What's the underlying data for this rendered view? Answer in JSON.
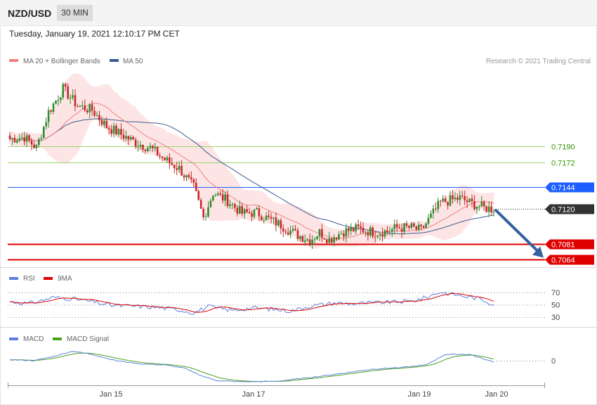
{
  "header": {
    "symbol": "NZD/USD",
    "timeframe": "30 MIN"
  },
  "datetime": "Tuesday, January 19, 2021 12:10:17 PM CET",
  "credit": "Research © 2021 Trading Central",
  "colors": {
    "ma20": "#f08080",
    "ma50": "#3c5a91",
    "band": "#fde0e0",
    "pivot": "#1e5eff",
    "support": "#e00000",
    "resistance_line": "#9ed36a",
    "resistance_text": "#339900",
    "price_tag": "#333333",
    "arrow": "#3461a0",
    "rsi": "#5b7fdc",
    "rsi_ma": "#e00000",
    "macd": "#5b7fdc",
    "macd_signal": "#4aa01c",
    "candle_up": "#2e8b2e",
    "candle_down": "#c62828"
  },
  "chart_data": [
    {
      "type": "candlestick",
      "name": "price",
      "legend": [
        {
          "label": "MA 20 + Bollinger Bands",
          "color": "#f08080"
        },
        {
          "label": "MA 50",
          "color": "#3c5a91"
        }
      ],
      "x_ticks": [
        "Jan 15",
        "Jan 17",
        "Jan 19",
        "Jan 20"
      ],
      "ylim": [
        0.7055,
        0.728
      ],
      "levels": [
        {
          "value": "0.7190",
          "kind": "resistance"
        },
        {
          "value": "0.7172",
          "kind": "resistance"
        },
        {
          "value": "0.7144",
          "kind": "pivot"
        },
        {
          "value": "0.7120",
          "kind": "last"
        },
        {
          "value": "0.7081",
          "kind": "support"
        },
        {
          "value": "0.7064",
          "kind": "support"
        }
      ],
      "close_anchors": [
        [
          0,
          0.7198
        ],
        [
          6,
          0.72
        ],
        [
          11,
          0.7188
        ],
        [
          16,
          0.7228
        ],
        [
          22,
          0.7254
        ],
        [
          28,
          0.7235
        ],
        [
          34,
          0.723
        ],
        [
          40,
          0.7212
        ],
        [
          46,
          0.7203
        ],
        [
          52,
          0.7194
        ],
        [
          58,
          0.7188
        ],
        [
          64,
          0.7175
        ],
        [
          70,
          0.7165
        ],
        [
          76,
          0.7144
        ],
        [
          80,
          0.711
        ],
        [
          84,
          0.7138
        ],
        [
          90,
          0.7129
        ],
        [
          96,
          0.7115
        ],
        [
          102,
          0.7116
        ],
        [
          106,
          0.711
        ],
        [
          112,
          0.7102
        ],
        [
          118,
          0.7092
        ],
        [
          124,
          0.7085
        ],
        [
          128,
          0.7094
        ],
        [
          132,
          0.7086
        ],
        [
          138,
          0.7095
        ],
        [
          144,
          0.7098
        ],
        [
          150,
          0.7094
        ],
        [
          156,
          0.7095
        ],
        [
          160,
          0.7099
        ],
        [
          166,
          0.7099
        ],
        [
          170,
          0.7096
        ],
        [
          178,
          0.7127
        ],
        [
          186,
          0.7132
        ],
        [
          190,
          0.7127
        ],
        [
          196,
          0.7121
        ],
        [
          200,
          0.712
        ]
      ],
      "forecast_arrow": {
        "from": 0.712,
        "to": 0.7064
      }
    },
    {
      "type": "line",
      "name": "rsi",
      "legend": [
        {
          "label": "RSI",
          "color": "#5b7fdc"
        },
        {
          "label": "9MA",
          "color": "#e00000"
        }
      ],
      "y_ticks": [
        "70",
        "50",
        "30"
      ],
      "ylim": [
        20,
        80
      ],
      "anchors": [
        [
          0,
          55
        ],
        [
          8,
          52
        ],
        [
          18,
          62
        ],
        [
          26,
          60
        ],
        [
          34,
          55
        ],
        [
          42,
          49
        ],
        [
          50,
          48
        ],
        [
          60,
          46
        ],
        [
          70,
          42
        ],
        [
          76,
          37
        ],
        [
          82,
          47
        ],
        [
          92,
          41
        ],
        [
          100,
          45
        ],
        [
          108,
          43
        ],
        [
          116,
          40
        ],
        [
          124,
          48
        ],
        [
          134,
          53
        ],
        [
          142,
          52
        ],
        [
          150,
          53
        ],
        [
          160,
          55
        ],
        [
          166,
          56
        ],
        [
          172,
          62
        ],
        [
          178,
          71
        ],
        [
          186,
          65
        ],
        [
          194,
          60
        ],
        [
          200,
          51
        ]
      ]
    },
    {
      "type": "line",
      "name": "macd",
      "legend": [
        {
          "label": "MACD",
          "color": "#5b7fdc"
        },
        {
          "label": "MACD Signal",
          "color": "#4aa01c"
        }
      ],
      "y_ticks": [
        "0"
      ],
      "ylim": [
        -0.0012,
        0.0006
      ],
      "anchors": [
        [
          0,
          5e-05
        ],
        [
          10,
          0.0
        ],
        [
          18,
          0.0002
        ],
        [
          26,
          0.00045
        ],
        [
          34,
          0.0003
        ],
        [
          44,
          0.0
        ],
        [
          54,
          -0.00015
        ],
        [
          64,
          -0.0002
        ],
        [
          72,
          -0.00035
        ],
        [
          80,
          -0.00075
        ],
        [
          86,
          -0.00095
        ],
        [
          96,
          -0.001
        ],
        [
          110,
          -0.00098
        ],
        [
          124,
          -0.0008
        ],
        [
          136,
          -0.00062
        ],
        [
          150,
          -0.0004
        ],
        [
          164,
          -0.0003
        ],
        [
          172,
          -0.0002
        ],
        [
          180,
          0.0003
        ],
        [
          190,
          0.0003
        ],
        [
          198,
          0.0
        ],
        [
          200,
          -5e-05
        ]
      ]
    }
  ]
}
